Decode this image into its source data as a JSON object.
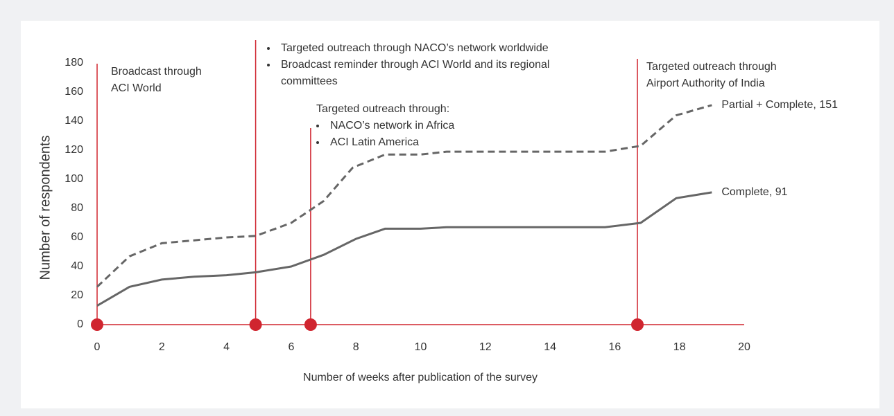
{
  "chart_data": {
    "type": "line",
    "x_label": "Number of weeks after publication of the survey",
    "y_label": "Number of respondents",
    "xlim": [
      0,
      20
    ],
    "xticks": [
      0,
      2,
      4,
      6,
      8,
      10,
      12,
      14,
      16,
      18,
      20
    ],
    "ylim": [
      0,
      180
    ],
    "yticks": [
      0,
      20,
      40,
      60,
      80,
      100,
      120,
      140,
      160,
      180
    ],
    "grid": false,
    "series": [
      {
        "name": "Partial + Complete",
        "label": "Partial + Complete, 151",
        "color": "#666666",
        "dashed": true,
        "x": [
          0,
          1,
          2,
          3,
          4,
          4.9,
          6,
          7,
          7.9,
          8.9,
          10,
          10.8,
          12,
          14,
          15.7,
          16.8,
          17.9,
          19
        ],
        "values": [
          26,
          47,
          56,
          58,
          60,
          61,
          70,
          85,
          108,
          117,
          117,
          119,
          119,
          119,
          119,
          123,
          144,
          151
        ]
      },
      {
        "name": "Complete",
        "label": "Complete, 91",
        "color": "#666666",
        "dashed": false,
        "x": [
          0,
          1,
          2,
          3,
          4,
          4.9,
          6,
          7,
          8,
          8.9,
          10,
          10.8,
          12,
          14,
          15.7,
          16.8,
          17.9,
          19
        ],
        "values": [
          13,
          26,
          31,
          33,
          34,
          36,
          40,
          48,
          59,
          66,
          66,
          67,
          67,
          67,
          67,
          70,
          87,
          91
        ]
      }
    ],
    "event_color": "#d0252f",
    "events": [
      {
        "x": 0,
        "heading": [
          "Broadcast through",
          "ACI World"
        ],
        "bullets": []
      },
      {
        "x": 4.9,
        "heading": [],
        "bullets": [
          [
            "Targeted outreach through NACO’s network worldwide"
          ],
          [
            "Broadcast reminder through ACI World and its regional",
            "committees"
          ]
        ]
      },
      {
        "x": 6.6,
        "heading": [
          "Targeted outreach through:"
        ],
        "bullets": [
          [
            "NACO’s network in Africa"
          ],
          [
            "ACI Latin America"
          ]
        ]
      },
      {
        "x": 16.7,
        "heading": [
          "Targeted outreach through",
          "Airport Authority of India"
        ],
        "bullets": []
      }
    ]
  }
}
